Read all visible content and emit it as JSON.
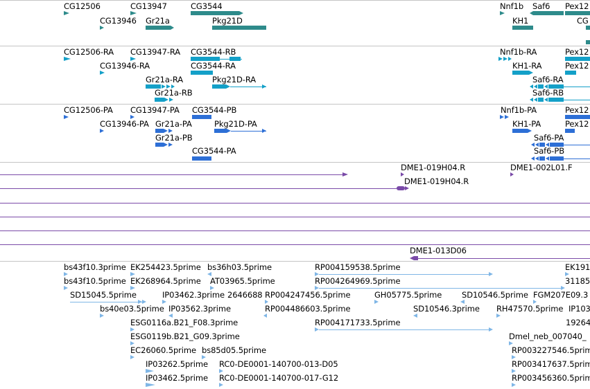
{
  "colors": {
    "gene": "#2e8b8b",
    "transcript_cdna": "#14a0c8",
    "transcript_protein": "#2d6fd6",
    "clone": "#7a4aa8",
    "est": "#7fb6e6",
    "separator": "#c4c4c4"
  },
  "tracks": [
    {
      "name": "genes",
      "features": [
        {
          "label": "CG12506"
        },
        {
          "label": "CG13947"
        },
        {
          "label": "CG3544"
        },
        {
          "label": "CG13946"
        },
        {
          "label": "Gr21a"
        },
        {
          "label": "Pkg21D"
        },
        {
          "label": "Nnf1b"
        },
        {
          "label": "Saf6"
        },
        {
          "label": "Pex12"
        },
        {
          "label": "KH1"
        },
        {
          "label": "CG"
        }
      ]
    },
    {
      "name": "transcripts-ra",
      "features": [
        {
          "label": "CG12506-RA"
        },
        {
          "label": "CG13947-RA"
        },
        {
          "label": "CG3544-RB"
        },
        {
          "label": "CG13946-RA"
        },
        {
          "label": "CG3544-RA"
        },
        {
          "label": "Gr21a-RA"
        },
        {
          "label": "Pkg21D-RA"
        },
        {
          "label": "Gr21a-RB"
        },
        {
          "label": "Nnf1b-RA"
        },
        {
          "label": "Pex12"
        },
        {
          "label": "KH1-RA"
        },
        {
          "label": "Pex12"
        },
        {
          "label": "Saf6-RA"
        },
        {
          "label": "Saf6-RB"
        }
      ]
    },
    {
      "name": "transcripts-pa",
      "features": [
        {
          "label": "CG12506-PA"
        },
        {
          "label": "CG13947-PA"
        },
        {
          "label": "CG3544-PB"
        },
        {
          "label": "CG13946-PA"
        },
        {
          "label": "Gr21a-PA"
        },
        {
          "label": "Pkg21D-PA"
        },
        {
          "label": "Gr21a-PB"
        },
        {
          "label": "CG3544-PA"
        },
        {
          "label": "Nnf1b-PA"
        },
        {
          "label": "Pex12"
        },
        {
          "label": "KH1-PA"
        },
        {
          "label": "Pex12"
        },
        {
          "label": "Saf6-PA"
        },
        {
          "label": "Saf6-PB"
        }
      ]
    },
    {
      "name": "clones",
      "features": [
        {
          "label": "DME1-019H04.R"
        },
        {
          "label": "DME1-002L01.F"
        },
        {
          "label": "DME1-019H04.R"
        },
        {
          "label": "DME1-013D06"
        }
      ]
    },
    {
      "name": "ests",
      "features": [
        {
          "label": "bs43f10.3prime"
        },
        {
          "label": "EK254423.5prime"
        },
        {
          "label": "bs36h03.5prime"
        },
        {
          "label": "RP004159538.5prime"
        },
        {
          "label": "EK191"
        },
        {
          "label": "bs43f10.5prime"
        },
        {
          "label": "EK268964.5prime"
        },
        {
          "label": "AT03965.5prime"
        },
        {
          "label": "RP004264969.5prime"
        },
        {
          "label": "31185"
        },
        {
          "label": "SD15045.5prime"
        },
        {
          "label": "IP03462.3prime"
        },
        {
          "label": "2646688"
        },
        {
          "label": "RP004247456.5prime"
        },
        {
          "label": "GH05775.5prime"
        },
        {
          "label": "SD10546.5prime"
        },
        {
          "label": "FGM207E09.3"
        },
        {
          "label": "bs40e03.5prime"
        },
        {
          "label": "IP03562.3prime"
        },
        {
          "label": "RP004486603.5prime"
        },
        {
          "label": "SD10546.3prime"
        },
        {
          "label": "RH47570.5prime"
        },
        {
          "label": "IP103"
        },
        {
          "label": "ESG0116a.B21_F08.3prime"
        },
        {
          "label": "RP004171733.5prime"
        },
        {
          "label": "19264"
        },
        {
          "label": "ESG0119b.B21_G09.3prime"
        },
        {
          "label": "Dmel_neb_007040_"
        },
        {
          "label": "EC26060.5prime"
        },
        {
          "label": "bs85d05.5prime"
        },
        {
          "label": "RP003227546.5prime"
        },
        {
          "label": "IP03262.5prime"
        },
        {
          "label": "RC0-DE0001-140700-013-D05"
        },
        {
          "label": "RP003417637.5prime"
        },
        {
          "label": "IP03462.5prime"
        },
        {
          "label": "RC0-DE0001-140700-017-G12"
        },
        {
          "label": "RP003456360.5prime"
        }
      ]
    }
  ]
}
